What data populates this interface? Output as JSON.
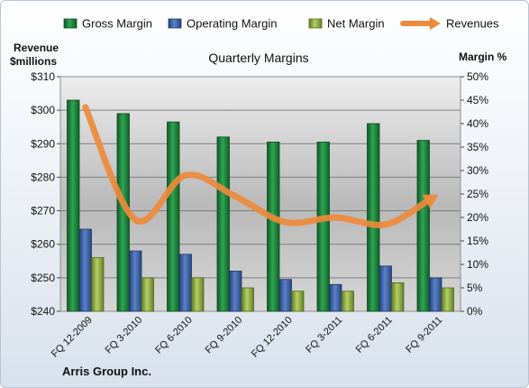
{
  "chart_data": {
    "type": "bar",
    "title": "Quarterly Margins",
    "company": "Arris Group Inc.",
    "left_axis_label_line1": "Revenue",
    "left_axis_label_line2": "$millions",
    "right_axis_label": "Margin %",
    "categories": [
      "FQ 12-2009",
      "FQ 3-2010",
      "FQ 6-2010",
      "FQ 9-2010",
      "FQ 12-2010",
      "FQ 3-2011",
      "FQ 6-2011",
      "FQ 9-2011"
    ],
    "left_ylim": [
      240,
      310
    ],
    "left_ticks": [
      "$240",
      "$250",
      "$260",
      "$270",
      "$280",
      "$290",
      "$300",
      "$310"
    ],
    "right_ylim": [
      0,
      50
    ],
    "right_ticks": [
      "0%",
      "5%",
      "10%",
      "15%",
      "20%",
      "25%",
      "30%",
      "35%",
      "40%",
      "45%",
      "50%"
    ],
    "legend_position": "top",
    "grid": true,
    "series": [
      {
        "name": "Gross Margin",
        "axis": "left",
        "color": "#1f8a3f",
        "values": [
          303,
          299,
          296.5,
          292,
          290.5,
          290.5,
          296,
          291
        ]
      },
      {
        "name": "Operating Margin",
        "axis": "left",
        "color": "#3f64b0",
        "values": [
          264.5,
          258,
          257,
          252,
          249.5,
          248,
          253.5,
          250
        ]
      },
      {
        "name": "Net Margin",
        "axis": "left",
        "color": "#9bbb4a",
        "values": [
          256,
          250,
          250,
          247,
          246,
          246,
          248.5,
          247
        ]
      },
      {
        "name": "Revenues",
        "axis": "right",
        "color": "#ed8a3b",
        "type": "line",
        "values": [
          43.5,
          19.5,
          29,
          24.5,
          19,
          20,
          18.5,
          24.5
        ]
      }
    ]
  }
}
